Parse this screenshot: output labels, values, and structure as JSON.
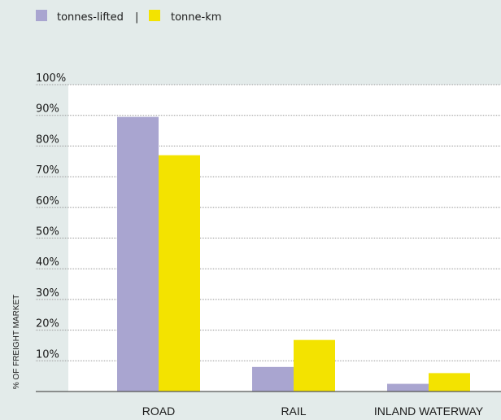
{
  "chart_data": {
    "type": "bar",
    "categories": [
      "ROAD",
      "RAIL",
      "INLAND WATERWAY"
    ],
    "series": [
      {
        "name": "tonnes-lifted",
        "values": [
          89.5,
          8,
          2.5
        ],
        "color": "#a9a5d0"
      },
      {
        "name": "tonne-km",
        "values": [
          77,
          16.8,
          6
        ],
        "color": "#f3e300"
      }
    ],
    "legend_separator": "|",
    "legend_position": "top-left",
    "ylabel": "% OF FREIGHT MARKET",
    "ylim": [
      0,
      100
    ],
    "yticks": [
      10,
      20,
      30,
      40,
      50,
      60,
      70,
      80,
      90,
      100
    ],
    "ytick_labels": [
      "10%",
      "20%",
      "30%",
      "40%",
      "50%",
      "60%",
      "70%",
      "80%",
      "90%",
      "100%"
    ],
    "grid": true,
    "colors": {
      "background": "#e3ebea",
      "plot_background": "#ffffff",
      "grid": "#9a9a9a",
      "axis": "#555555"
    }
  }
}
